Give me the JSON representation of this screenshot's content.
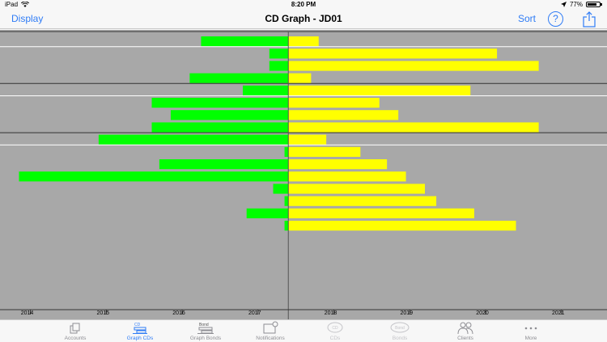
{
  "status_bar": {
    "device": "iPad",
    "time": "8:20 PM",
    "battery": "77%",
    "battery_level": 0.77
  },
  "nav": {
    "left_button": "Display",
    "title": "CD Graph - JD01",
    "sort_button": "Sort",
    "help_label": "?"
  },
  "chart_data": {
    "type": "bar",
    "x_ticks": [
      "2014",
      "2015",
      "2016",
      "2017",
      "2018",
      "2019",
      "2020",
      "2021"
    ],
    "xlim": [
      2013.6,
      2021.6
    ],
    "center_year": 2017.4,
    "colors": {
      "left": "#00ff00",
      "right": "#ffff00",
      "background": "#a8a8a8"
    },
    "series": [
      {
        "name": "left",
        "color": "#00ff00"
      },
      {
        "name": "right",
        "color": "#ffff00"
      }
    ],
    "bars": [
      {
        "start": 2016.25,
        "end": 2017.8
      },
      {
        "start": 2017.15,
        "end": 2020.15
      },
      {
        "start": 2017.15,
        "end": 2020.7
      },
      {
        "start": 2016.1,
        "end": 2017.7
      },
      {
        "start": 2016.8,
        "end": 2019.8
      },
      {
        "start": 2015.6,
        "end": 2018.6
      },
      {
        "start": 2015.85,
        "end": 2018.85
      },
      {
        "start": 2015.6,
        "end": 2020.7
      },
      {
        "start": 2014.9,
        "end": 2017.9
      },
      {
        "start": 2017.35,
        "end": 2018.35
      },
      {
        "start": 2015.7,
        "end": 2018.7
      },
      {
        "start": 2013.85,
        "end": 2018.95
      },
      {
        "start": 2017.2,
        "end": 2019.2
      },
      {
        "start": 2017.35,
        "end": 2019.35
      },
      {
        "start": 2016.85,
        "end": 2019.85
      },
      {
        "start": 2017.35,
        "end": 2020.4
      }
    ]
  },
  "tabs": [
    {
      "label": "Accounts",
      "icon": "accounts-icon",
      "state": "normal"
    },
    {
      "label": "Graph CDs",
      "icon": "graph-cds-icon",
      "state": "active",
      "icon_text": "CD"
    },
    {
      "label": "Graph Bonds",
      "icon": "graph-bonds-icon",
      "state": "normal",
      "icon_text": "Bond"
    },
    {
      "label": "Notifications",
      "icon": "notifications-icon",
      "state": "normal"
    },
    {
      "label": "CDs",
      "icon": "cds-icon",
      "state": "disabled",
      "icon_text": "CD"
    },
    {
      "label": "Bonds",
      "icon": "bonds-icon",
      "state": "disabled",
      "icon_text": "Bond"
    },
    {
      "label": "Clients",
      "icon": "clients-icon",
      "state": "normal"
    },
    {
      "label": "More",
      "icon": "more-icon",
      "state": "normal"
    }
  ]
}
